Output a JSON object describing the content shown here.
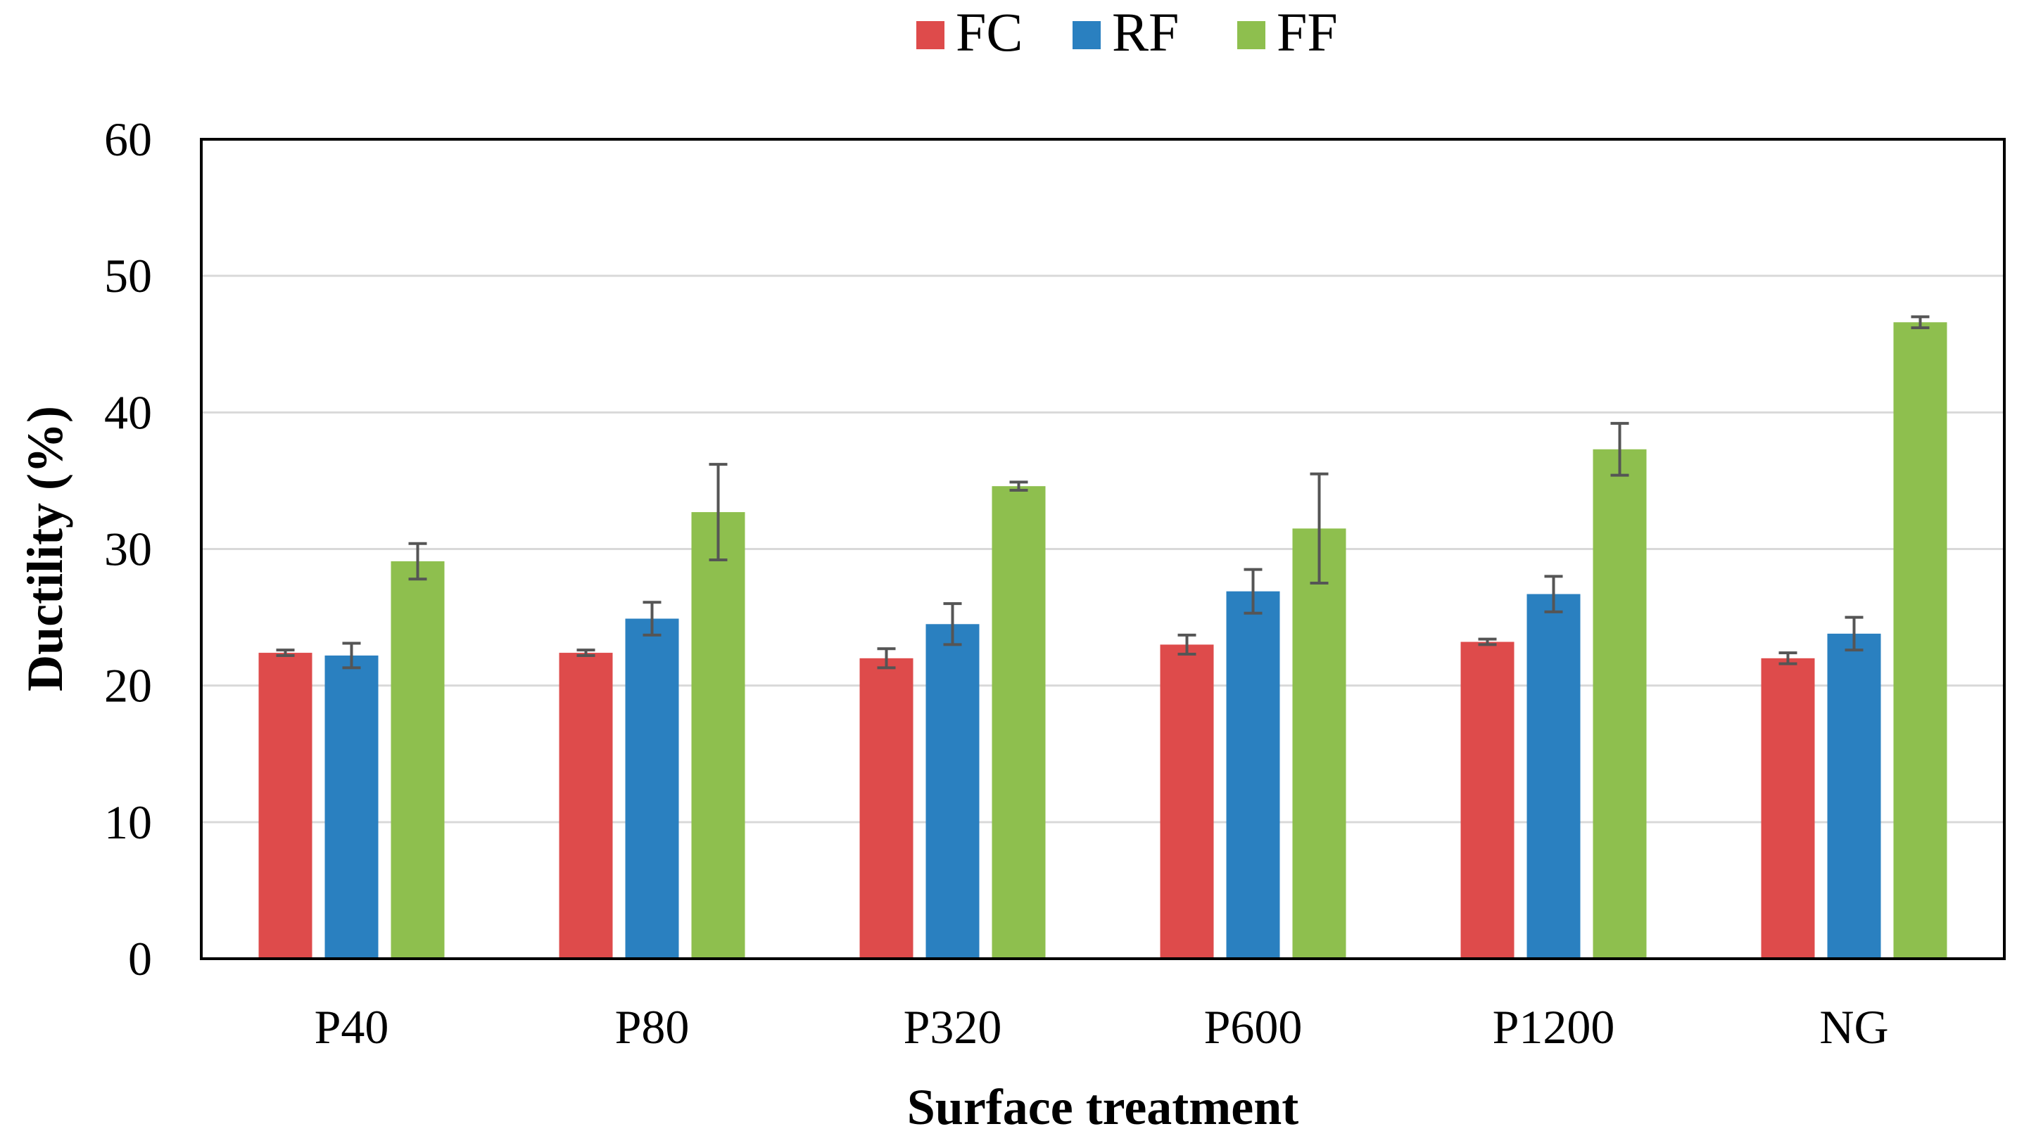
{
  "chart_data": {
    "type": "bar",
    "title": "",
    "xlabel": "Surface treatment",
    "ylabel": "Ductility (%)",
    "ylim": [
      0,
      60
    ],
    "yticks": [
      0,
      10,
      20,
      30,
      40,
      50,
      60
    ],
    "grid": true,
    "legend_position": "top-center",
    "categories": [
      "P40",
      "P80",
      "P320",
      "P600",
      "P1200",
      "NG"
    ],
    "series": [
      {
        "name": "FC",
        "color": "#de4b4b",
        "values": [
          22.4,
          22.4,
          22.0,
          23.0,
          23.2,
          22.0
        ],
        "errors": [
          0.2,
          0.2,
          0.7,
          0.7,
          0.2,
          0.4
        ]
      },
      {
        "name": "RF",
        "color": "#2a80c0",
        "values": [
          22.2,
          24.9,
          24.5,
          26.9,
          26.7,
          23.8
        ],
        "errors": [
          0.9,
          1.2,
          1.5,
          1.6,
          1.3,
          1.2
        ]
      },
      {
        "name": "FF",
        "color": "#8ebf4e",
        "values": [
          29.1,
          32.7,
          34.6,
          31.5,
          37.3,
          46.6
        ],
        "errors": [
          1.3,
          3.5,
          0.3,
          4.0,
          1.9,
          0.4
        ]
      }
    ]
  }
}
